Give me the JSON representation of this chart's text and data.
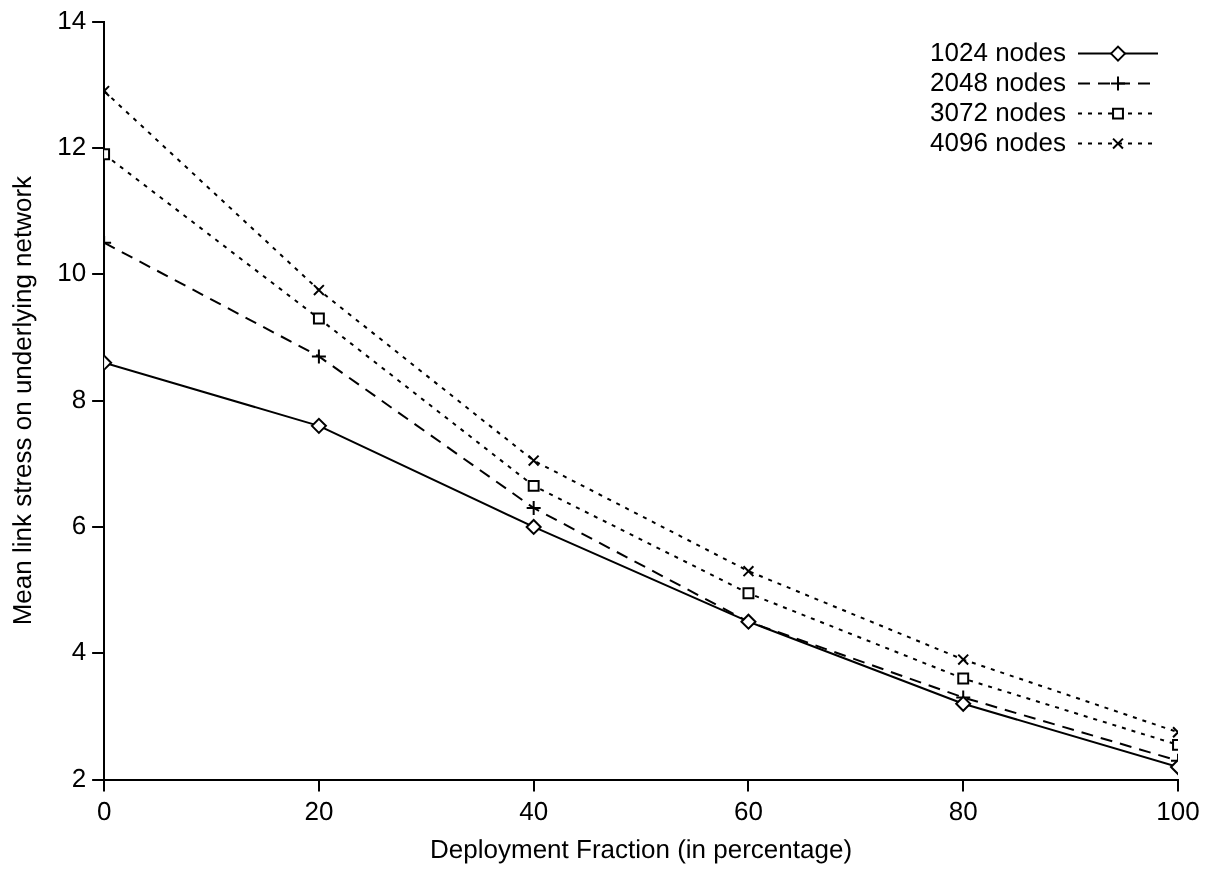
{
  "chart_data": {
    "type": "line",
    "xlabel": "Deployment Fraction (in percentage)",
    "ylabel": "Mean link stress on underlying network",
    "x": [
      0,
      20,
      40,
      60,
      80,
      100
    ],
    "xlim": [
      0,
      100
    ],
    "xticks": [
      0,
      20,
      40,
      60,
      80,
      100
    ],
    "ylim": [
      2,
      14
    ],
    "yticks": [
      2,
      4,
      6,
      8,
      10,
      12,
      14
    ],
    "grid": false,
    "legend": "top right",
    "series": [
      {
        "name": "1024 nodes",
        "color": "#000000",
        "marker": "diamond",
        "line_style": "solid",
        "values": [
          8.6,
          7.6,
          6.0,
          4.5,
          3.2,
          2.2
        ]
      },
      {
        "name": "2048 nodes",
        "color": "#000000",
        "marker": "cross",
        "line_style": "dashed",
        "values": [
          10.5,
          8.7,
          6.3,
          4.5,
          3.3,
          2.3
        ]
      },
      {
        "name": "3072 nodes",
        "color": "#000000",
        "marker": "square",
        "line_style": "dotted",
        "values": [
          11.9,
          9.3,
          6.65,
          4.95,
          3.6,
          2.55
        ]
      },
      {
        "name": "4096 nodes",
        "color": "#000000",
        "marker": "x",
        "line_style": "dotted",
        "values": [
          12.9,
          9.75,
          7.05,
          5.3,
          3.9,
          2.75
        ]
      }
    ]
  }
}
